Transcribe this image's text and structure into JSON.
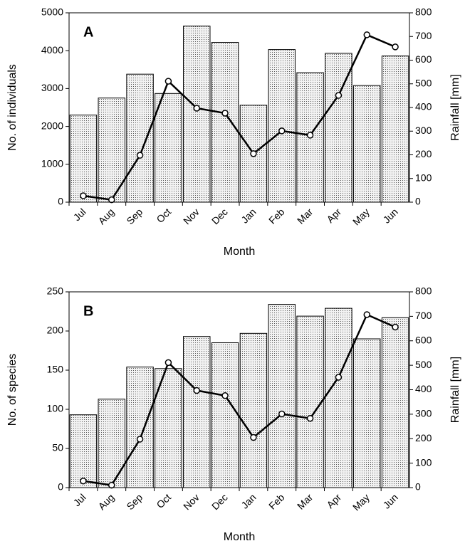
{
  "chart_data": [
    {
      "type": "bar_line",
      "panel_label": "A",
      "x_label": "Month",
      "y_label": "No. of individuals",
      "y2_label": "Rainfall [mm]",
      "categories": [
        "Jul",
        "Aug",
        "Sep",
        "Oct",
        "Nov",
        "Dec",
        "Jan",
        "Feb",
        "Mar",
        "Apr",
        "May",
        "Jun"
      ],
      "series": [
        {
          "type": "bar",
          "color": "#d9d9d9",
          "values": [
            2300,
            2750,
            3380,
            2870,
            4650,
            4220,
            2560,
            4030,
            3420,
            3930,
            3080,
            3860
          ]
        },
        {
          "type": "line",
          "axis": "y2",
          "color": "#000000",
          "values": [
            27,
            10,
            198,
            511,
            397,
            376,
            205,
            301,
            283,
            451,
            707,
            656
          ]
        }
      ],
      "ylim": [
        0,
        5000
      ],
      "yticks": [
        0,
        1000,
        2000,
        3000,
        4000,
        5000
      ],
      "y2lim": [
        0,
        800
      ],
      "y2ticks": [
        0,
        100,
        200,
        300,
        400,
        500,
        600,
        700,
        800
      ]
    },
    {
      "type": "bar_line",
      "panel_label": "B",
      "x_label": "Month",
      "y_label": "No. of species",
      "y2_label": "Rainfall [mm]",
      "categories": [
        "Jul",
        "Aug",
        "Sep",
        "Oct",
        "Nov",
        "Dec",
        "Jan",
        "Feb",
        "Mar",
        "Apr",
        "May",
        "Jun"
      ],
      "series": [
        {
          "type": "bar",
          "color": "#d9d9d9",
          "values": [
            93,
            113,
            154,
            152,
            193,
            185,
            197,
            234,
            219,
            229,
            190,
            217
          ]
        },
        {
          "type": "line",
          "axis": "y2",
          "color": "#000000",
          "values": [
            27,
            10,
            198,
            511,
            397,
            376,
            205,
            301,
            283,
            451,
            707,
            656
          ]
        }
      ],
      "ylim": [
        0,
        250
      ],
      "yticks": [
        0,
        50,
        100,
        150,
        200,
        250
      ],
      "y2lim": [
        0,
        800
      ],
      "y2ticks": [
        0,
        100,
        200,
        300,
        400,
        500,
        600,
        700,
        800
      ]
    }
  ]
}
